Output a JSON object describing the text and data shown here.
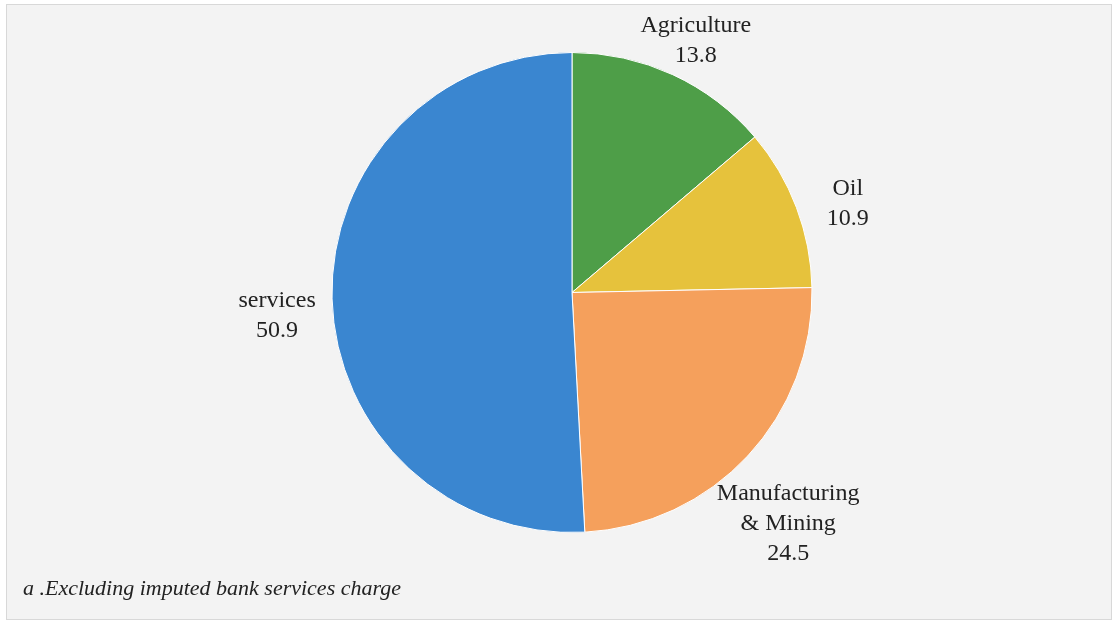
{
  "chart_data": {
    "type": "pie",
    "categories": [
      "Agriculture",
      "Oil",
      "Manufacturing & Mining",
      "services"
    ],
    "values": [
      13.8,
      10.9,
      24.5,
      50.9
    ],
    "colors": [
      "#4e9e48",
      "#e6c23c",
      "#f5a05c",
      "#3a86d0"
    ],
    "data_labels": true,
    "annotations": [
      "a .Excluding imputed bank services charge"
    ]
  }
}
